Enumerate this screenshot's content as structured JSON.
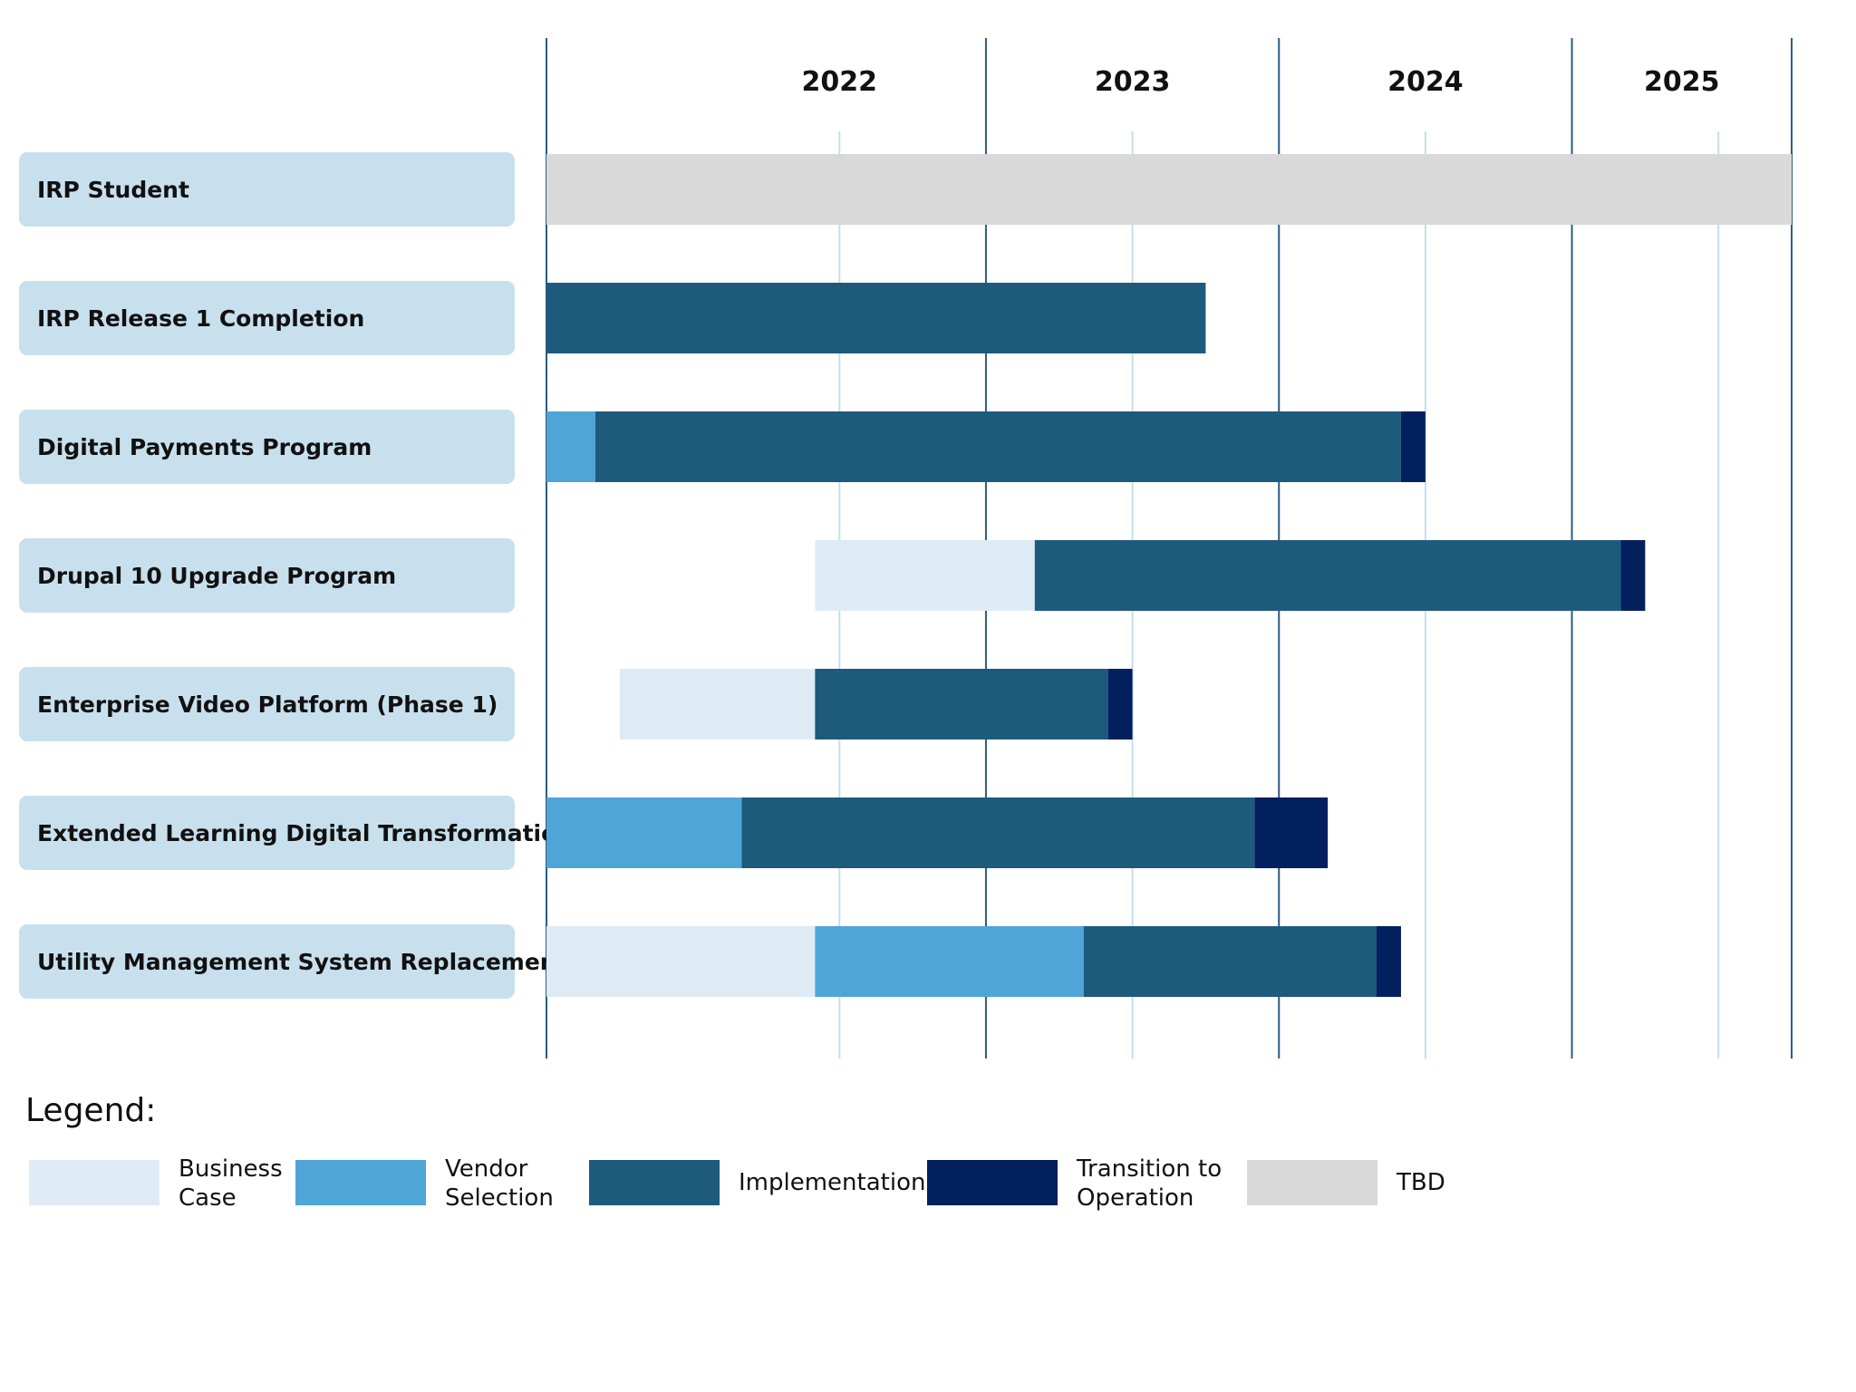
{
  "chart_data": {
    "type": "gantt",
    "years": [
      "2022",
      "2023",
      "2024",
      "2025"
    ],
    "xlim": [
      "2021-07",
      "2025-10"
    ],
    "grid": true,
    "phases": {
      "business_case": {
        "label": [
          "Business",
          "Case"
        ],
        "color": "#deebf5"
      },
      "vendor_selection": {
        "label": [
          "Vendor",
          "Selection"
        ],
        "color": "#4fa5d8"
      },
      "implementation": {
        "label": [
          "Implementation"
        ],
        "color": "#1e5a7c"
      },
      "transition": {
        "label": [
          "Transition to",
          "Operation"
        ],
        "color": "#021f5e"
      },
      "tbd": {
        "label": [
          "TBD"
        ],
        "color": "#d9d9d9"
      }
    },
    "label_box_color": "#c8e0ed",
    "projects": [
      {
        "name": "IRP Student",
        "segments": [
          {
            "phase": "tbd",
            "start": "2021-07",
            "end": "2025-10"
          }
        ]
      },
      {
        "name": "IRP Release 1 Completion",
        "segments": [
          {
            "phase": "implementation",
            "start": "2021-07",
            "end": "2023-10"
          }
        ]
      },
      {
        "name": "Digital Payments Program",
        "segments": [
          {
            "phase": "vendor_selection",
            "start": "2021-07",
            "end": "2021-09"
          },
          {
            "phase": "implementation",
            "start": "2021-09",
            "end": "2024-06"
          },
          {
            "phase": "transition",
            "start": "2024-06",
            "end": "2024-07"
          }
        ]
      },
      {
        "name": "Drupal 10 Upgrade Program",
        "segments": [
          {
            "phase": "business_case",
            "start": "2022-06",
            "end": "2023-03"
          },
          {
            "phase": "implementation",
            "start": "2023-03",
            "end": "2025-03"
          },
          {
            "phase": "transition",
            "start": "2025-03",
            "end": "2025-04"
          }
        ]
      },
      {
        "name": "Enterprise Video Platform (Phase 1)",
        "segments": [
          {
            "phase": "business_case",
            "start": "2021-10",
            "end": "2022-06"
          },
          {
            "phase": "implementation",
            "start": "2022-06",
            "end": "2023-06"
          },
          {
            "phase": "transition",
            "start": "2023-06",
            "end": "2023-07"
          }
        ]
      },
      {
        "name": "Extended Learning Digital Transformation",
        "segments": [
          {
            "phase": "vendor_selection",
            "start": "2021-07",
            "end": "2022-03"
          },
          {
            "phase": "implementation",
            "start": "2022-03",
            "end": "2023-12"
          },
          {
            "phase": "transition",
            "start": "2023-12",
            "end": "2024-03"
          }
        ]
      },
      {
        "name": "Utility Management System Replacement",
        "segments": [
          {
            "phase": "business_case",
            "start": "2021-07",
            "end": "2022-06"
          },
          {
            "phase": "vendor_selection",
            "start": "2022-06",
            "end": "2023-05"
          },
          {
            "phase": "implementation",
            "start": "2023-05",
            "end": "2024-05"
          },
          {
            "phase": "transition",
            "start": "2024-05",
            "end": "2024-06"
          }
        ]
      }
    ],
    "legend": {
      "title": "Legend:",
      "placement": "bottom-left",
      "order": [
        "business_case",
        "vendor_selection",
        "implementation",
        "transition",
        "tbd"
      ]
    }
  }
}
